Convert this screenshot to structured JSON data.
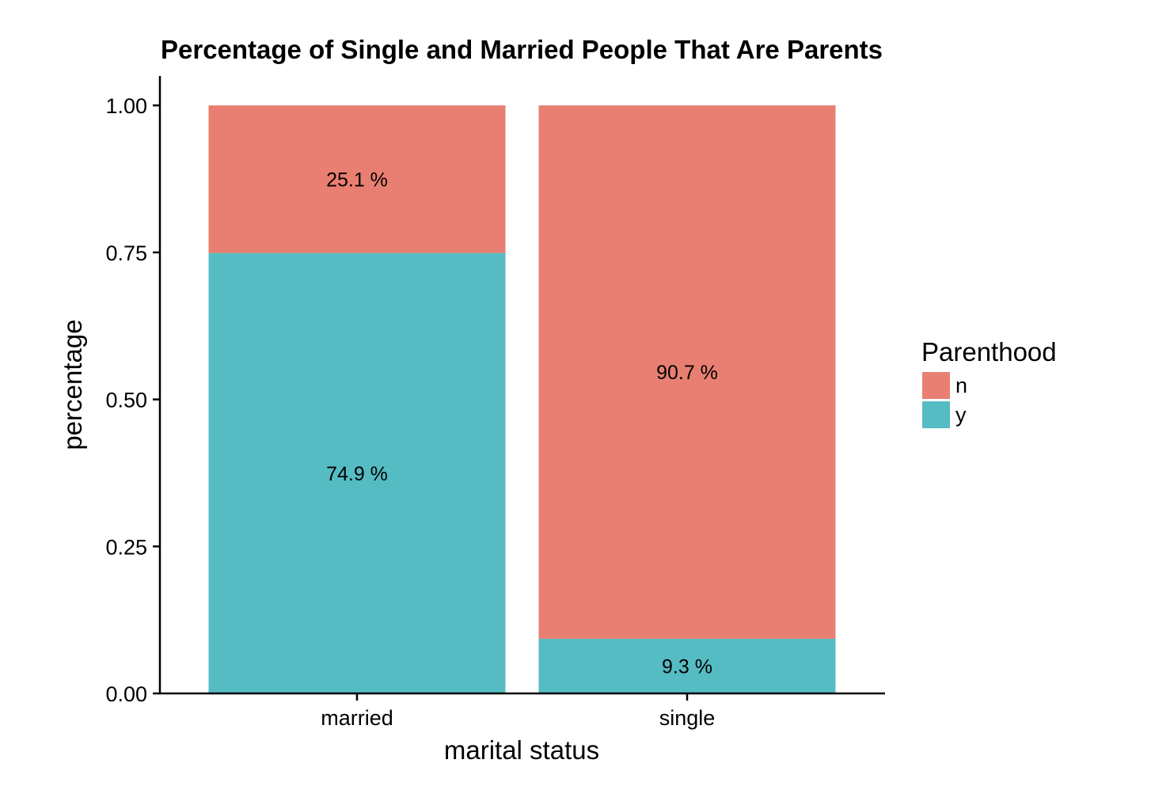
{
  "chart_data": {
    "type": "bar",
    "stacked": true,
    "title": "Percentage of Single and Married People That Are Parents",
    "xlabel": "marital status",
    "ylabel": "percentage",
    "categories": [
      "married",
      "single"
    ],
    "ylim": [
      0,
      1.05
    ],
    "yticks": [
      "0.00",
      "0.25",
      "0.50",
      "0.75",
      "1.00"
    ],
    "ytick_values": [
      0,
      0.25,
      0.5,
      0.75,
      1.0
    ],
    "grid": false,
    "legend": {
      "title": "Parenthood",
      "position": "right",
      "entries": [
        "n",
        "y"
      ]
    },
    "series": [
      {
        "name": "y",
        "color": "#56BCC3",
        "values": [
          0.749,
          0.093
        ],
        "labels": [
          "74.9 %",
          "9.3 %"
        ]
      },
      {
        "name": "n",
        "color": "#E87F72",
        "values": [
          0.251,
          0.907
        ],
        "labels": [
          "25.1 %",
          "90.7 %"
        ]
      }
    ]
  }
}
